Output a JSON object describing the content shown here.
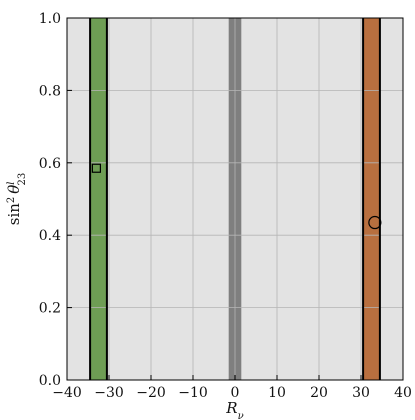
{
  "chart_data": {
    "type": "scatter",
    "xlabel": "R",
    "xlabel_sub": "ν",
    "ylabel_prefix": "sin",
    "ylabel_power": "2",
    "ylabel_symbol": "θ",
    "ylabel_sup": "l",
    "ylabel_sub": "23",
    "xlim": [
      -40,
      40
    ],
    "ylim": [
      0.0,
      1.0
    ],
    "xticks": [
      -40,
      -30,
      -20,
      -10,
      0,
      10,
      20,
      30,
      40
    ],
    "xtick_labels": [
      "−40",
      "−30",
      "−20",
      "−10",
      "0",
      "10",
      "20",
      "30",
      "40"
    ],
    "yticks": [
      0.0,
      0.2,
      0.4,
      0.6,
      0.8,
      1.0
    ],
    "ytick_labels": [
      "0.0",
      "0.2",
      "0.4",
      "0.6",
      "0.8",
      "1.0"
    ],
    "grid": true,
    "background_region": {
      "x": [
        -40,
        40
      ],
      "y": [
        0,
        1
      ],
      "color": "#e3e3e3"
    },
    "bands": [
      {
        "x": [
          -34.5,
          -30.5
        ],
        "y": [
          0,
          1
        ],
        "color": "#6e9d54"
      },
      {
        "x": [
          -1.5,
          1.5
        ],
        "y": [
          0,
          1
        ],
        "color": "#7f7f7f"
      },
      {
        "x": [
          30.5,
          34.5
        ],
        "y": [
          0,
          1
        ],
        "color": "#b86f3f"
      }
    ],
    "vlines": [
      {
        "x": -34.5,
        "color": "#000000"
      },
      {
        "x": -30.5,
        "color": "#000000"
      },
      {
        "x": 30.5,
        "color": "#000000"
      },
      {
        "x": 34.5,
        "color": "#000000"
      }
    ],
    "points": [
      {
        "x": -33.0,
        "y": 0.585,
        "marker": "square"
      },
      {
        "x": 33.3,
        "y": 0.435,
        "marker": "circle"
      }
    ]
  }
}
